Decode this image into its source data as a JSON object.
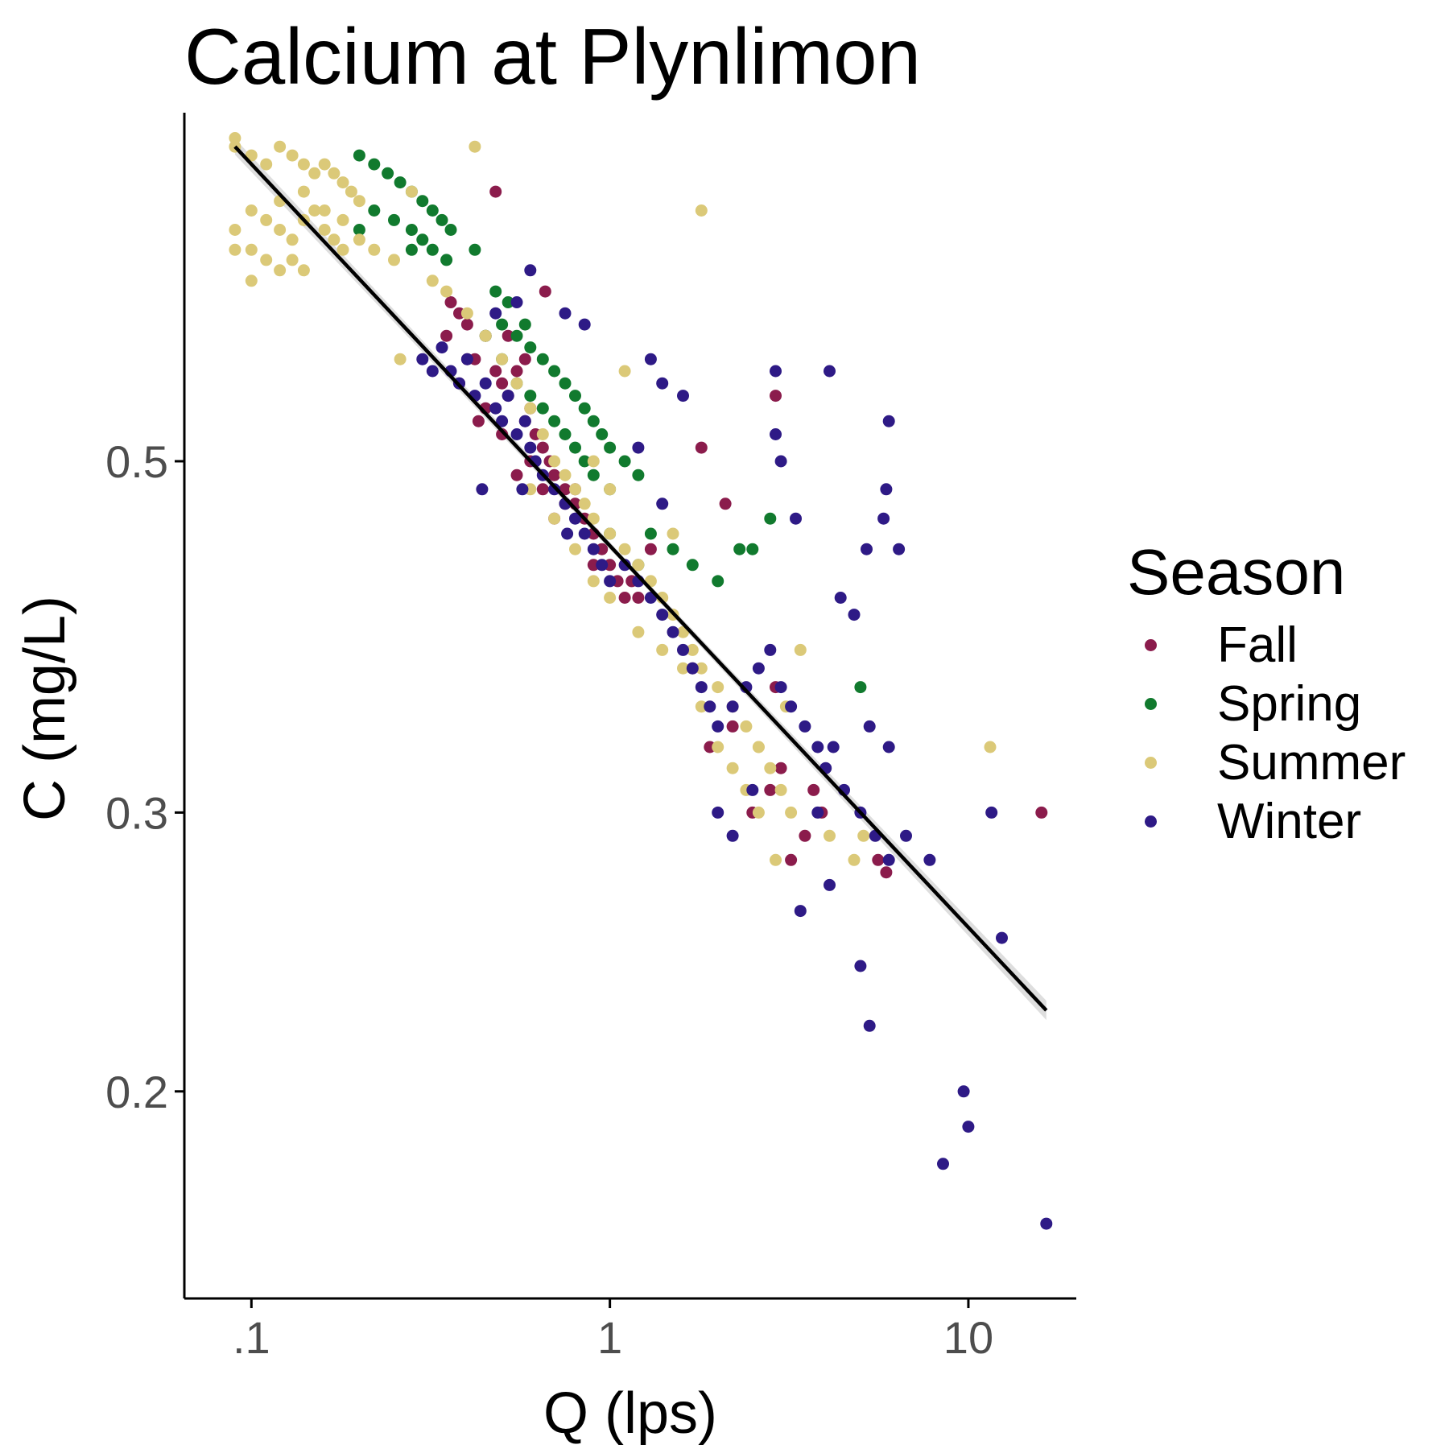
{
  "chart_data": {
    "type": "scatter",
    "title": "Calcium at Plynlimon",
    "xlabel": "Q (lps)",
    "ylabel": "C (mg/L)",
    "x_scale": "log10",
    "y_scale": "log10",
    "xlim": [
      0.065,
      20
    ],
    "ylim": [
      0.148,
      0.83
    ],
    "x_ticks": [
      {
        "value": 0.1,
        "label": ".1"
      },
      {
        "value": 1,
        "label": "1"
      },
      {
        "value": 10,
        "label": "10"
      }
    ],
    "y_ticks": [
      {
        "value": 0.2,
        "label": "0.2"
      },
      {
        "value": 0.3,
        "label": "0.3"
      },
      {
        "value": 0.5,
        "label": "0.5"
      }
    ],
    "grid": false,
    "legend": {
      "title": "Season",
      "placement": "right"
    },
    "colors": {
      "Fall": "#8b1c4c",
      "Spring": "#117a2e",
      "Summer": "#dbc978",
      "Winter": "#2e1a86",
      "fit": "#000000",
      "band": "#c8c8c8"
    },
    "fit_line": {
      "x": [
        0.09,
        16.5
      ],
      "y": [
        0.79,
        0.225
      ],
      "method": "linear regression on log-log scale with confidence band"
    },
    "series": [
      {
        "name": "Fall",
        "points": [
          [
            0.36,
            0.63
          ],
          [
            0.38,
            0.62
          ],
          [
            0.4,
            0.61
          ],
          [
            0.42,
            0.58
          ],
          [
            0.45,
            0.6
          ],
          [
            0.48,
            0.57
          ],
          [
            0.5,
            0.56
          ],
          [
            0.52,
            0.55
          ],
          [
            0.55,
            0.57
          ],
          [
            0.58,
            0.53
          ],
          [
            0.6,
            0.54
          ],
          [
            0.62,
            0.52
          ],
          [
            0.65,
            0.51
          ],
          [
            0.68,
            0.5
          ],
          [
            0.7,
            0.49
          ],
          [
            0.75,
            0.48
          ],
          [
            0.8,
            0.47
          ],
          [
            0.85,
            0.46
          ],
          [
            0.9,
            0.45
          ],
          [
            0.95,
            0.44
          ],
          [
            1.0,
            0.43
          ],
          [
            1.05,
            0.42
          ],
          [
            1.1,
            0.41
          ],
          [
            1.15,
            0.42
          ],
          [
            1.2,
            0.41
          ],
          [
            0.55,
            0.49
          ],
          [
            0.65,
            0.48
          ],
          [
            0.75,
            0.47
          ],
          [
            0.5,
            0.52
          ],
          [
            0.6,
            0.5
          ],
          [
            0.7,
            0.46
          ],
          [
            0.8,
            0.48
          ],
          [
            0.45,
            0.54
          ],
          [
            0.4,
            0.58
          ],
          [
            0.35,
            0.6
          ],
          [
            0.52,
            0.6
          ],
          [
            0.58,
            0.58
          ],
          [
            0.38,
            0.56
          ],
          [
            0.43,
            0.53
          ],
          [
            0.9,
            0.43
          ],
          [
            1.3,
            0.44
          ],
          [
            0.48,
            0.74
          ],
          [
            0.66,
            0.64
          ],
          [
            1.8,
            0.51
          ],
          [
            2.1,
            0.47
          ],
          [
            2.9,
            0.55
          ],
          [
            2.8,
            0.31
          ],
          [
            2.9,
            0.36
          ],
          [
            3.0,
            0.32
          ],
          [
            3.2,
            0.28
          ],
          [
            3.5,
            0.29
          ],
          [
            3.7,
            0.31
          ],
          [
            3.9,
            0.3
          ],
          [
            5.6,
            0.28
          ],
          [
            5.9,
            0.275
          ],
          [
            16.0,
            0.3
          ],
          [
            2.5,
            0.3
          ],
          [
            1.9,
            0.33
          ],
          [
            2.2,
            0.34
          ],
          [
            1.7,
            0.37
          ]
        ]
      },
      {
        "name": "Spring",
        "points": [
          [
            0.2,
            0.78
          ],
          [
            0.22,
            0.77
          ],
          [
            0.24,
            0.76
          ],
          [
            0.26,
            0.75
          ],
          [
            0.28,
            0.74
          ],
          [
            0.3,
            0.73
          ],
          [
            0.32,
            0.72
          ],
          [
            0.34,
            0.71
          ],
          [
            0.36,
            0.7
          ],
          [
            0.22,
            0.72
          ],
          [
            0.25,
            0.71
          ],
          [
            0.28,
            0.7
          ],
          [
            0.3,
            0.69
          ],
          [
            0.32,
            0.68
          ],
          [
            0.45,
            0.6
          ],
          [
            0.5,
            0.61
          ],
          [
            0.55,
            0.6
          ],
          [
            0.6,
            0.59
          ],
          [
            0.65,
            0.58
          ],
          [
            0.7,
            0.57
          ],
          [
            0.75,
            0.56
          ],
          [
            0.8,
            0.55
          ],
          [
            0.85,
            0.54
          ],
          [
            0.9,
            0.53
          ],
          [
            0.95,
            0.52
          ],
          [
            1.0,
            0.51
          ],
          [
            1.1,
            0.5
          ],
          [
            1.2,
            0.49
          ],
          [
            0.5,
            0.58
          ],
          [
            0.55,
            0.56
          ],
          [
            0.6,
            0.55
          ],
          [
            0.65,
            0.54
          ],
          [
            0.7,
            0.53
          ],
          [
            0.75,
            0.52
          ],
          [
            0.8,
            0.51
          ],
          [
            0.85,
            0.5
          ],
          [
            0.9,
            0.49
          ],
          [
            1.0,
            0.48
          ],
          [
            1.3,
            0.45
          ],
          [
            1.5,
            0.44
          ],
          [
            1.7,
            0.43
          ],
          [
            2.0,
            0.42
          ],
          [
            2.3,
            0.44
          ],
          [
            2.5,
            0.44
          ],
          [
            2.8,
            0.46
          ],
          [
            5.0,
            0.36
          ],
          [
            1.2,
            0.43
          ],
          [
            1.0,
            0.45
          ],
          [
            0.48,
            0.64
          ],
          [
            0.52,
            0.63
          ],
          [
            0.58,
            0.61
          ],
          [
            0.35,
            0.67
          ],
          [
            0.42,
            0.68
          ],
          [
            0.28,
            0.68
          ],
          [
            0.2,
            0.7
          ]
        ]
      },
      {
        "name": "Summer",
        "points": [
          [
            0.09,
            0.8
          ],
          [
            0.09,
            0.79
          ],
          [
            0.1,
            0.78
          ],
          [
            0.11,
            0.77
          ],
          [
            0.12,
            0.79
          ],
          [
            0.13,
            0.78
          ],
          [
            0.14,
            0.77
          ],
          [
            0.15,
            0.76
          ],
          [
            0.16,
            0.77
          ],
          [
            0.17,
            0.76
          ],
          [
            0.18,
            0.75
          ],
          [
            0.19,
            0.74
          ],
          [
            0.2,
            0.73
          ],
          [
            0.09,
            0.7
          ],
          [
            0.1,
            0.72
          ],
          [
            0.11,
            0.71
          ],
          [
            0.12,
            0.7
          ],
          [
            0.13,
            0.69
          ],
          [
            0.14,
            0.71
          ],
          [
            0.15,
            0.72
          ],
          [
            0.16,
            0.7
          ],
          [
            0.17,
            0.69
          ],
          [
            0.18,
            0.68
          ],
          [
            0.1,
            0.65
          ],
          [
            0.11,
            0.67
          ],
          [
            0.12,
            0.66
          ],
          [
            0.13,
            0.67
          ],
          [
            0.14,
            0.66
          ],
          [
            0.09,
            0.68
          ],
          [
            0.1,
            0.68
          ],
          [
            0.12,
            0.73
          ],
          [
            0.14,
            0.74
          ],
          [
            0.16,
            0.72
          ],
          [
            0.18,
            0.71
          ],
          [
            0.2,
            0.69
          ],
          [
            0.22,
            0.68
          ],
          [
            0.25,
            0.67
          ],
          [
            0.42,
            0.79
          ],
          [
            1.8,
            0.72
          ],
          [
            0.28,
            0.74
          ],
          [
            0.32,
            0.65
          ],
          [
            0.35,
            0.64
          ],
          [
            0.4,
            0.62
          ],
          [
            0.45,
            0.6
          ],
          [
            0.5,
            0.58
          ],
          [
            0.55,
            0.56
          ],
          [
            0.6,
            0.54
          ],
          [
            0.65,
            0.52
          ],
          [
            0.7,
            0.5
          ],
          [
            0.75,
            0.49
          ],
          [
            0.8,
            0.48
          ],
          [
            0.85,
            0.47
          ],
          [
            0.9,
            0.46
          ],
          [
            1.0,
            0.45
          ],
          [
            1.1,
            0.44
          ],
          [
            1.2,
            0.43
          ],
          [
            1.3,
            0.42
          ],
          [
            1.4,
            0.41
          ],
          [
            1.5,
            0.4
          ],
          [
            1.6,
            0.39
          ],
          [
            1.7,
            0.38
          ],
          [
            1.8,
            0.37
          ],
          [
            2.0,
            0.36
          ],
          [
            2.2,
            0.35
          ],
          [
            2.4,
            0.34
          ],
          [
            2.6,
            0.33
          ],
          [
            2.8,
            0.32
          ],
          [
            3.0,
            0.31
          ],
          [
            3.2,
            0.3
          ],
          [
            0.6,
            0.48
          ],
          [
            0.7,
            0.46
          ],
          [
            0.8,
            0.44
          ],
          [
            0.9,
            0.42
          ],
          [
            1.0,
            0.41
          ],
          [
            1.2,
            0.39
          ],
          [
            1.4,
            0.38
          ],
          [
            1.6,
            0.37
          ],
          [
            1.8,
            0.35
          ],
          [
            2.0,
            0.33
          ],
          [
            2.2,
            0.32
          ],
          [
            2.4,
            0.31
          ],
          [
            2.6,
            0.3
          ],
          [
            1.1,
            0.57
          ],
          [
            1.0,
            0.48
          ],
          [
            0.9,
            0.5
          ],
          [
            1.5,
            0.45
          ],
          [
            2.6,
            0.33
          ],
          [
            3.1,
            0.35
          ],
          [
            3.4,
            0.38
          ],
          [
            5.1,
            0.29
          ],
          [
            4.1,
            0.29
          ],
          [
            4.8,
            0.28
          ],
          [
            11.5,
            0.33
          ],
          [
            2.9,
            0.28
          ],
          [
            0.26,
            0.58
          ]
        ]
      },
      {
        "name": "Winter",
        "points": [
          [
            0.3,
            0.58
          ],
          [
            0.32,
            0.57
          ],
          [
            0.34,
            0.59
          ],
          [
            0.36,
            0.57
          ],
          [
            0.38,
            0.56
          ],
          [
            0.4,
            0.58
          ],
          [
            0.42,
            0.55
          ],
          [
            0.45,
            0.56
          ],
          [
            0.48,
            0.54
          ],
          [
            0.5,
            0.53
          ],
          [
            0.52,
            0.55
          ],
          [
            0.55,
            0.52
          ],
          [
            0.58,
            0.53
          ],
          [
            0.6,
            0.51
          ],
          [
            0.62,
            0.5
          ],
          [
            0.65,
            0.49
          ],
          [
            0.7,
            0.48
          ],
          [
            0.75,
            0.47
          ],
          [
            0.8,
            0.46
          ],
          [
            0.85,
            0.45
          ],
          [
            0.9,
            0.44
          ],
          [
            0.95,
            0.43
          ],
          [
            1.0,
            0.42
          ],
          [
            1.1,
            0.43
          ],
          [
            1.2,
            0.42
          ],
          [
            1.3,
            0.41
          ],
          [
            1.4,
            0.4
          ],
          [
            1.5,
            0.39
          ],
          [
            1.6,
            0.38
          ],
          [
            1.7,
            0.37
          ],
          [
            1.8,
            0.36
          ],
          [
            1.9,
            0.35
          ],
          [
            2.0,
            0.34
          ],
          [
            2.2,
            0.35
          ],
          [
            2.4,
            0.36
          ],
          [
            2.6,
            0.37
          ],
          [
            2.8,
            0.38
          ],
          [
            3.0,
            0.36
          ],
          [
            3.2,
            0.35
          ],
          [
            3.5,
            0.34
          ],
          [
            3.8,
            0.33
          ],
          [
            4.0,
            0.32
          ],
          [
            4.5,
            0.31
          ],
          [
            5.0,
            0.3
          ],
          [
            5.5,
            0.29
          ],
          [
            6.0,
            0.28
          ],
          [
            0.48,
            0.62
          ],
          [
            0.55,
            0.63
          ],
          [
            0.6,
            0.66
          ],
          [
            0.75,
            0.62
          ],
          [
            0.85,
            0.61
          ],
          [
            1.3,
            0.58
          ],
          [
            1.4,
            0.56
          ],
          [
            1.6,
            0.55
          ],
          [
            2.9,
            0.57
          ],
          [
            2.9,
            0.52
          ],
          [
            3.0,
            0.5
          ],
          [
            3.3,
            0.46
          ],
          [
            4.1,
            0.57
          ],
          [
            5.2,
            0.44
          ],
          [
            5.9,
            0.48
          ],
          [
            6.0,
            0.53
          ],
          [
            6.4,
            0.44
          ],
          [
            5.8,
            0.46
          ],
          [
            4.4,
            0.41
          ],
          [
            4.8,
            0.4
          ],
          [
            5.3,
            0.34
          ],
          [
            6.0,
            0.33
          ],
          [
            6.7,
            0.29
          ],
          [
            7.8,
            0.28
          ],
          [
            10.0,
            0.19
          ],
          [
            9.7,
            0.2
          ],
          [
            8.5,
            0.18
          ],
          [
            11.6,
            0.3
          ],
          [
            12.4,
            0.25
          ],
          [
            16.5,
            0.165
          ],
          [
            5.0,
            0.24
          ],
          [
            5.3,
            0.22
          ],
          [
            3.4,
            0.26
          ],
          [
            4.1,
            0.27
          ],
          [
            0.44,
            0.48
          ],
          [
            0.57,
            0.48
          ],
          [
            0.76,
            0.45
          ],
          [
            1.2,
            0.51
          ],
          [
            1.4,
            0.47
          ],
          [
            2.5,
            0.31
          ],
          [
            2.2,
            0.29
          ],
          [
            2.0,
            0.3
          ],
          [
            3.8,
            0.3
          ],
          [
            4.2,
            0.33
          ]
        ]
      }
    ]
  }
}
